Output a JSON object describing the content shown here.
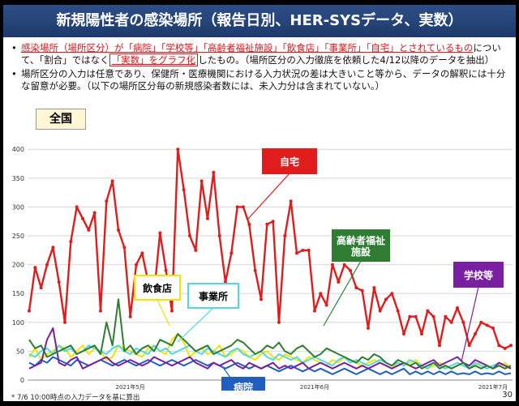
{
  "header": {
    "title": "新規陽性者の感染場所（報告日別、HER-SYSデータ、実数）"
  },
  "notes": {
    "n1": {
      "a": "感染場所（場所区分）が「病院」「学校等」「高齢者福祉施設」「飲食店」「事業所」「自宅」とされているもの",
      "b": "について、「割合」ではなく",
      "c": "「実数」をグラフ化",
      "d": "したもの。（場所区分の入力徹底を依頼した4/12以降のデータを抽出）"
    },
    "n2": "場所区分の入力は任意であり、保健所・医療機関における入力状況の差は大きいこと等から、データの解釈には十分な留意が必要。（以下の場所区分毎の新規感染者数には、未入力分は含まれていない。）",
    "bullet": "•"
  },
  "region_label": "全国",
  "footnote": "* 7/6 10:00時点の入力データを基に算出",
  "page_number": "30",
  "colors": {
    "home": "#e01c1c",
    "elderly": "#2e7d32",
    "restaurant": "#f2e400",
    "office": "#4fd9e6",
    "hospital": "#1f5fbf",
    "school": "#7a1fa2"
  },
  "chart_data": {
    "type": "line",
    "ylim": [
      0,
      420
    ],
    "yticks": [
      "0",
      "50",
      "100",
      "150",
      "200",
      "250",
      "300",
      "350",
      "400"
    ],
    "x_labels": [
      {
        "index": 17,
        "label": "2021年5月"
      },
      {
        "index": 48,
        "label": "2021年6月"
      },
      {
        "index": 78,
        "label": "2021年7月"
      }
    ],
    "series": [
      {
        "key": "restaurant",
        "name": "飲食店",
        "label_bg": "#ffffff",
        "label_border": "#f2e400",
        "values": [
          40,
          55,
          35,
          45,
          50,
          60,
          55,
          40,
          50,
          60,
          45,
          55,
          50,
          35,
          40,
          60,
          55,
          50,
          45,
          40,
          55,
          60,
          50,
          45,
          70,
          80,
          65,
          40,
          50,
          55,
          45,
          50,
          60,
          40,
          45,
          55,
          50,
          40,
          35,
          45,
          50,
          40,
          35,
          45,
          40,
          35,
          30,
          40,
          35,
          30,
          25,
          35,
          30,
          40,
          35,
          30,
          25,
          30,
          35,
          30,
          25,
          20,
          30,
          25,
          30,
          35,
          25,
          20,
          25,
          30,
          25,
          20,
          25,
          30,
          20,
          25,
          30,
          25,
          20,
          25,
          30,
          20
        ]
      },
      {
        "key": "office",
        "name": "事業所",
        "label_bg": "#ffffff",
        "label_border": "#4fd9e6",
        "values": [
          45,
          40,
          50,
          55,
          45,
          60,
          50,
          55,
          45,
          50,
          60,
          55,
          50,
          45,
          55,
          60,
          50,
          45,
          55,
          50,
          45,
          60,
          50,
          55,
          45,
          50,
          55,
          60,
          50,
          45,
          55,
          50,
          45,
          40,
          50,
          55,
          45,
          40,
          45,
          50,
          40,
          35,
          45,
          40,
          35,
          40,
          30,
          35,
          40,
          35,
          30,
          25,
          35,
          40,
          30,
          35,
          30,
          25,
          30,
          35,
          30,
          25,
          30,
          25,
          35,
          30,
          25,
          20,
          30,
          25,
          20,
          25,
          30,
          25,
          20,
          30,
          25,
          20,
          25,
          30,
          25,
          20
        ]
      },
      {
        "key": "hospital",
        "name": "病院",
        "label_bg": "#1f5fbf",
        "label_border": "#1f5fbf",
        "values": [
          30,
          25,
          35,
          30,
          40,
          35,
          30,
          25,
          35,
          30,
          25,
          30,
          35,
          30,
          25,
          30,
          35,
          30,
          25,
          30,
          35,
          30,
          25,
          30,
          35,
          30,
          25,
          30,
          35,
          30,
          25,
          30,
          25,
          20,
          25,
          30,
          25,
          20,
          25,
          20,
          25,
          20,
          15,
          20,
          25,
          20,
          15,
          20,
          15,
          20,
          15,
          10,
          15,
          20,
          15,
          10,
          15,
          20,
          15,
          10,
          15,
          10,
          15,
          20,
          10,
          15,
          10,
          15,
          10,
          15,
          10,
          15,
          10,
          12,
          10,
          15,
          10,
          12,
          10,
          15,
          10,
          12
        ]
      },
      {
        "key": "school",
        "name": "学校等",
        "label_bg": "#7a1fa2",
        "label_border": "#7a1fa2",
        "values": [
          20,
          25,
          30,
          70,
          90,
          30,
          25,
          35,
          40,
          20,
          25,
          30,
          35,
          40,
          30,
          25,
          30,
          35,
          30,
          25,
          30,
          40,
          35,
          30,
          25,
          30,
          35,
          40,
          30,
          25,
          20,
          30,
          25,
          30,
          35,
          25,
          20,
          30,
          25,
          20,
          25,
          30,
          20,
          25,
          20,
          25,
          30,
          20,
          25,
          30,
          25,
          20,
          25,
          30,
          25,
          20,
          25,
          20,
          25,
          30,
          25,
          20,
          25,
          30,
          25,
          20,
          25,
          30,
          35,
          25,
          30,
          35,
          40,
          30,
          25,
          35,
          30,
          25,
          20,
          30,
          25,
          20
        ]
      },
      {
        "key": "elderly",
        "name": "高齢者福祉\n施設",
        "label_bg": "#2e7d32",
        "label_border": "#2e7d32",
        "values": [
          70,
          55,
          60,
          40,
          45,
          50,
          55,
          60,
          45,
          50,
          55,
          60,
          45,
          100,
          60,
          140,
          50,
          60,
          45,
          55,
          60,
          50,
          70,
          65,
          60,
          80,
          70,
          60,
          50,
          55,
          60,
          45,
          50,
          55,
          60,
          70,
          65,
          55,
          45,
          50,
          60,
          55,
          65,
          50,
          45,
          55,
          60,
          50,
          40,
          45,
          55,
          50,
          45,
          40,
          35,
          30,
          40,
          35,
          45,
          40,
          30,
          25,
          35,
          30,
          25,
          30,
          20,
          25,
          30,
          20,
          25,
          20,
          25,
          30,
          20,
          25,
          20,
          25,
          20,
          25,
          20,
          25
        ]
      },
      {
        "key": "home",
        "name": "自宅",
        "label_bg": "#e01c1c",
        "label_border": "#e01c1c",
        "values": [
          120,
          195,
          160,
          200,
          230,
          170,
          100,
          240,
          300,
          280,
          260,
          290,
          120,
          310,
          345,
          260,
          230,
          110,
          200,
          220,
          170,
          150,
          255,
          190,
          120,
          400,
          330,
          250,
          225,
          345,
          280,
          360,
          250,
          170,
          220,
          300,
          300,
          270,
          190,
          140,
          270,
          275,
          100,
          250,
          310,
          220,
          225,
          225,
          120,
          150,
          130,
          200,
          170,
          200,
          190,
          160,
          155,
          90,
          160,
          120,
          140,
          150,
          120,
          80,
          110,
          110,
          80,
          120,
          110,
          60,
          110,
          100,
          125,
          100,
          60,
          80,
          100,
          95,
          90,
          60,
          55,
          60
        ]
      }
    ]
  }
}
